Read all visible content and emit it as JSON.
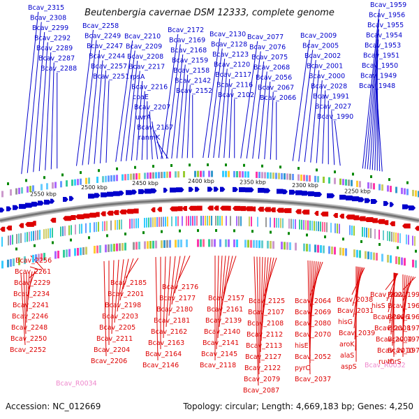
{
  "title": "Beutenbergia cavernae DSM 12333, complete genome",
  "accession": "Accession: NC_012669",
  "topology": "Topology: circular; Length: 4,669,183 bp; Genes: 4,250",
  "colors": {
    "forward": "#0000cc",
    "reverse": "#dd0000",
    "rna": "#ee88cc",
    "backbone": "#777777",
    "scale_tick": "#008800"
  },
  "scale_labels": [
    "2550 kbp",
    "2500 kbp",
    "2450 kbp",
    "2400 kbp",
    "2350 kbp",
    "2300 kbp",
    "2250 kbp"
  ],
  "forward_genes": [
    "Bcav_2315",
    "Bcav_2308",
    "Bcav_2299",
    "Bcav_2292",
    "Bcav_2289",
    "Bcav_2287",
    "Bcav_2288",
    "Bcav_2258",
    "Bcav_2249",
    "Bcav_2247",
    "Bcav_2244",
    "Bcav_2257",
    "Bcav_2251",
    "Bcav_2210",
    "Bcav_2209",
    "Bcav_2208",
    "Bcav_2217",
    "rpsA",
    "Bcav_2216",
    "coaE",
    "Bcav_2207",
    "uvrA",
    "Bcav_2167",
    "ranmK",
    "Bcav_2172",
    "Bcav_2169",
    "Bcav_2168",
    "Bcav_2159",
    "Bcav_2158",
    "Bcav_2142",
    "Bcav_2152",
    "Bcav_2130",
    "Bcav_2128",
    "Bcav_2123",
    "Bcav_2120",
    "Bcav_2117",
    "Bcav_2116",
    "Bcav_2102",
    "Bcav_2077",
    "Bcav_2076",
    "Bcav_2075",
    "Bcav_2068",
    "Bcav_2056",
    "Bcav_2067",
    "Bcav_2066",
    "Bcav_2009",
    "Bcav_2005",
    "Bcav_2002",
    "Bcav_2001",
    "Bcav_2000",
    "Bcav_2028",
    "Bcav_1991",
    "Bcav_2027",
    "Bcav_1990",
    "Bcav_1959",
    "Bcav_1956",
    "Bcav_1955",
    "Bcav_1954",
    "Bcav_1953",
    "Bcav_1951",
    "Bcav_1950",
    "Bcav_1949",
    "Bcav_1948"
  ],
  "reverse_genes": [
    "Bcav_2256",
    "Bcav_2261",
    "Bcav_2229",
    "Bcav_2234",
    "Bcav_2241",
    "Bcav_2246",
    "Bcav_2248",
    "Bcav_2250",
    "Bcav_2252",
    "Bcav_2185",
    "Bcav_2201",
    "Bcav_2198",
    "Bcav_2203",
    "Bcav_2205",
    "Bcav_2211",
    "Bcav_2204",
    "Bcav_2206",
    "Bcav_2176",
    "Bcav_2177",
    "Bcav_2180",
    "Bcav_2181",
    "Bcav_2162",
    "Bcav_2163",
    "Bcav_2164",
    "Bcav_2146",
    "Bcav_2157",
    "Bcav_2161",
    "Bcav_2139",
    "Bcav_2140",
    "Bcav_2141",
    "Bcav_2145",
    "Bcav_2118",
    "Bcav_2125",
    "Bcav_2107",
    "Bcav_2108",
    "Bcav_2112",
    "Bcav_2113",
    "Bcav_2127",
    "Bcav_2122",
    "Bcav_2079",
    "Bcav_2087",
    "Bcav_2064",
    "Bcav_2069",
    "Bcav_2080",
    "Bcav_2070",
    "hisE",
    "Bcav_2052",
    "pyrC",
    "Bcav_2037",
    "Bcav_2038",
    "Bcav_2031",
    "hisG",
    "Bcav_2039",
    "aroK",
    "alaS",
    "aspS",
    "Bcav_2021",
    "hisS",
    "Bcav_2006",
    "Bcav_2008",
    "Bcav_2004",
    "Bcav_2010",
    "ruvC",
    "Bcav_1996",
    "Bcav_1966",
    "Bcav_1968",
    "Bcav_1974",
    "Bcav_1977",
    "Bcav_1978",
    "thrS"
  ],
  "rna_genes": [
    "Bcav_R0034",
    "Bcav_R0032"
  ]
}
